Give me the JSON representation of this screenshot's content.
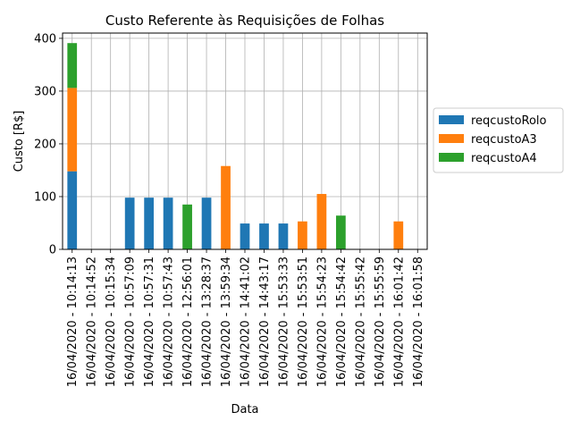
{
  "chart_data": {
    "type": "bar",
    "stacked": true,
    "title": "Custo Referente às Requisições de Folhas",
    "xlabel": "Data",
    "ylabel": "Custo [R$]",
    "ylim": [
      0,
      410
    ],
    "yticks": [
      0,
      100,
      200,
      300,
      400
    ],
    "grid": true,
    "legend_position": "right",
    "categories": [
      "16/04/2020 - 10:14:13",
      "16/04/2020 - 10:14:52",
      "16/04/2020 - 10:15:34",
      "16/04/2020 - 10:57:09",
      "16/04/2020 - 10:57:31",
      "16/04/2020 - 10:57:43",
      "16/04/2020 - 12:56:01",
      "16/04/2020 - 13:28:37",
      "16/04/2020 - 13:59:34",
      "16/04/2020 - 14:41:02",
      "16/04/2020 - 14:43:17",
      "16/04/2020 - 15:53:33",
      "16/04/2020 - 15:53:51",
      "16/04/2020 - 15:54:23",
      "16/04/2020 - 15:54:42",
      "16/04/2020 - 15:55:42",
      "16/04/2020 - 15:55:59",
      "16/04/2020 - 16:01:42",
      "16/04/2020 - 16:01:58"
    ],
    "series": [
      {
        "name": "reqcustoRolo",
        "color": "#1f77b4",
        "values": [
          148,
          0,
          0,
          98,
          98,
          98,
          0,
          98,
          0,
          49,
          49,
          49,
          0,
          0,
          0,
          0,
          0,
          0,
          0
        ]
      },
      {
        "name": "reqcustoA3",
        "color": "#ff7f0e",
        "values": [
          158,
          0,
          0,
          0,
          0,
          0,
          0,
          0,
          158,
          0,
          0,
          0,
          53,
          105,
          0,
          0,
          0,
          53,
          0
        ]
      },
      {
        "name": "reqcustoA4",
        "color": "#2ca02c",
        "values": [
          85,
          0,
          0,
          0,
          0,
          0,
          85,
          0,
          0,
          0,
          0,
          0,
          0,
          0,
          64,
          0,
          0,
          0,
          0
        ]
      }
    ]
  }
}
